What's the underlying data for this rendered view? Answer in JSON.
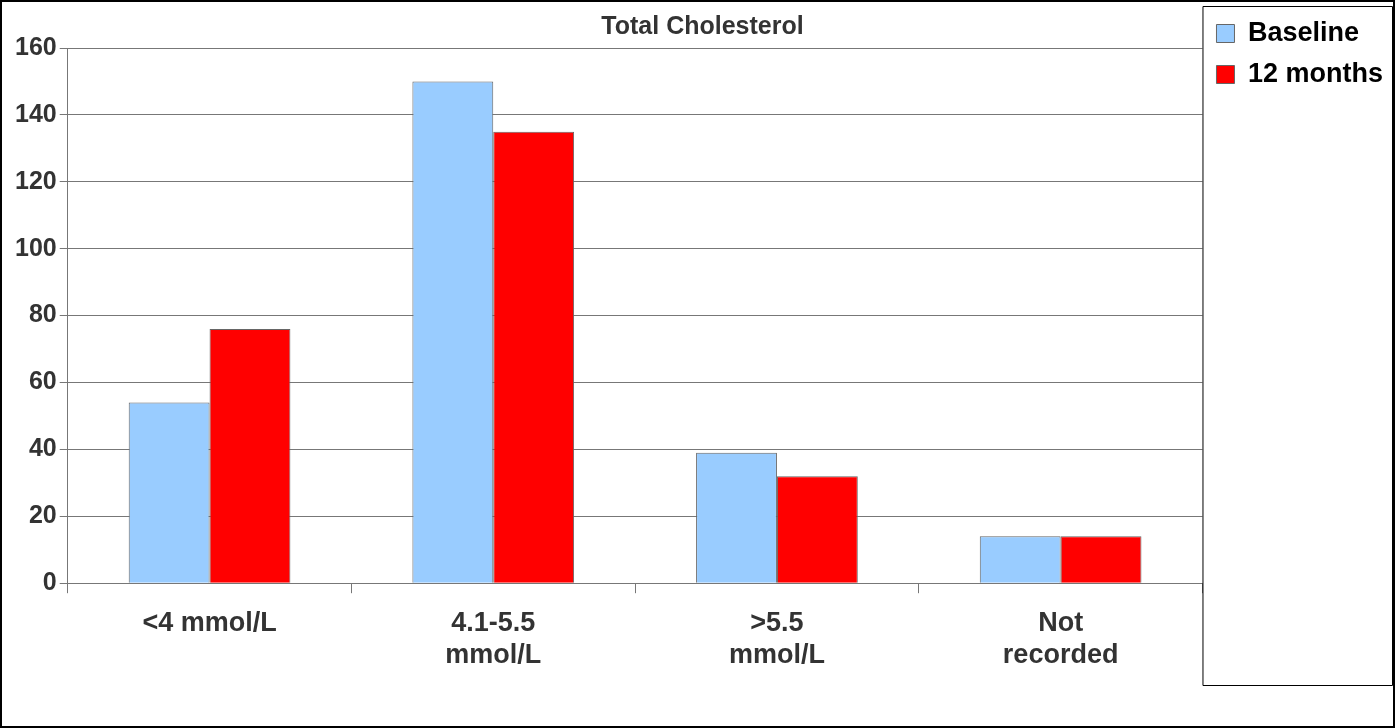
{
  "chart_data": {
    "type": "bar",
    "title": "Total Cholesterol",
    "categories": [
      "<4 mmol/L",
      "4.1-5.5\nmmol/L",
      ">5.5\nmmol/L",
      "Not\nrecorded"
    ],
    "series": [
      {
        "name": "Baseline",
        "color": "#99ccff",
        "values": [
          54,
          150,
          39,
          14
        ]
      },
      {
        "name": "12 months",
        "color": "#ff0000",
        "values": [
          76,
          135,
          32,
          14
        ]
      }
    ],
    "ylim": [
      0,
      160
    ],
    "yticks": [
      0,
      20,
      40,
      60,
      80,
      100,
      120,
      140,
      160
    ],
    "grid": "y",
    "legend": "top right"
  }
}
